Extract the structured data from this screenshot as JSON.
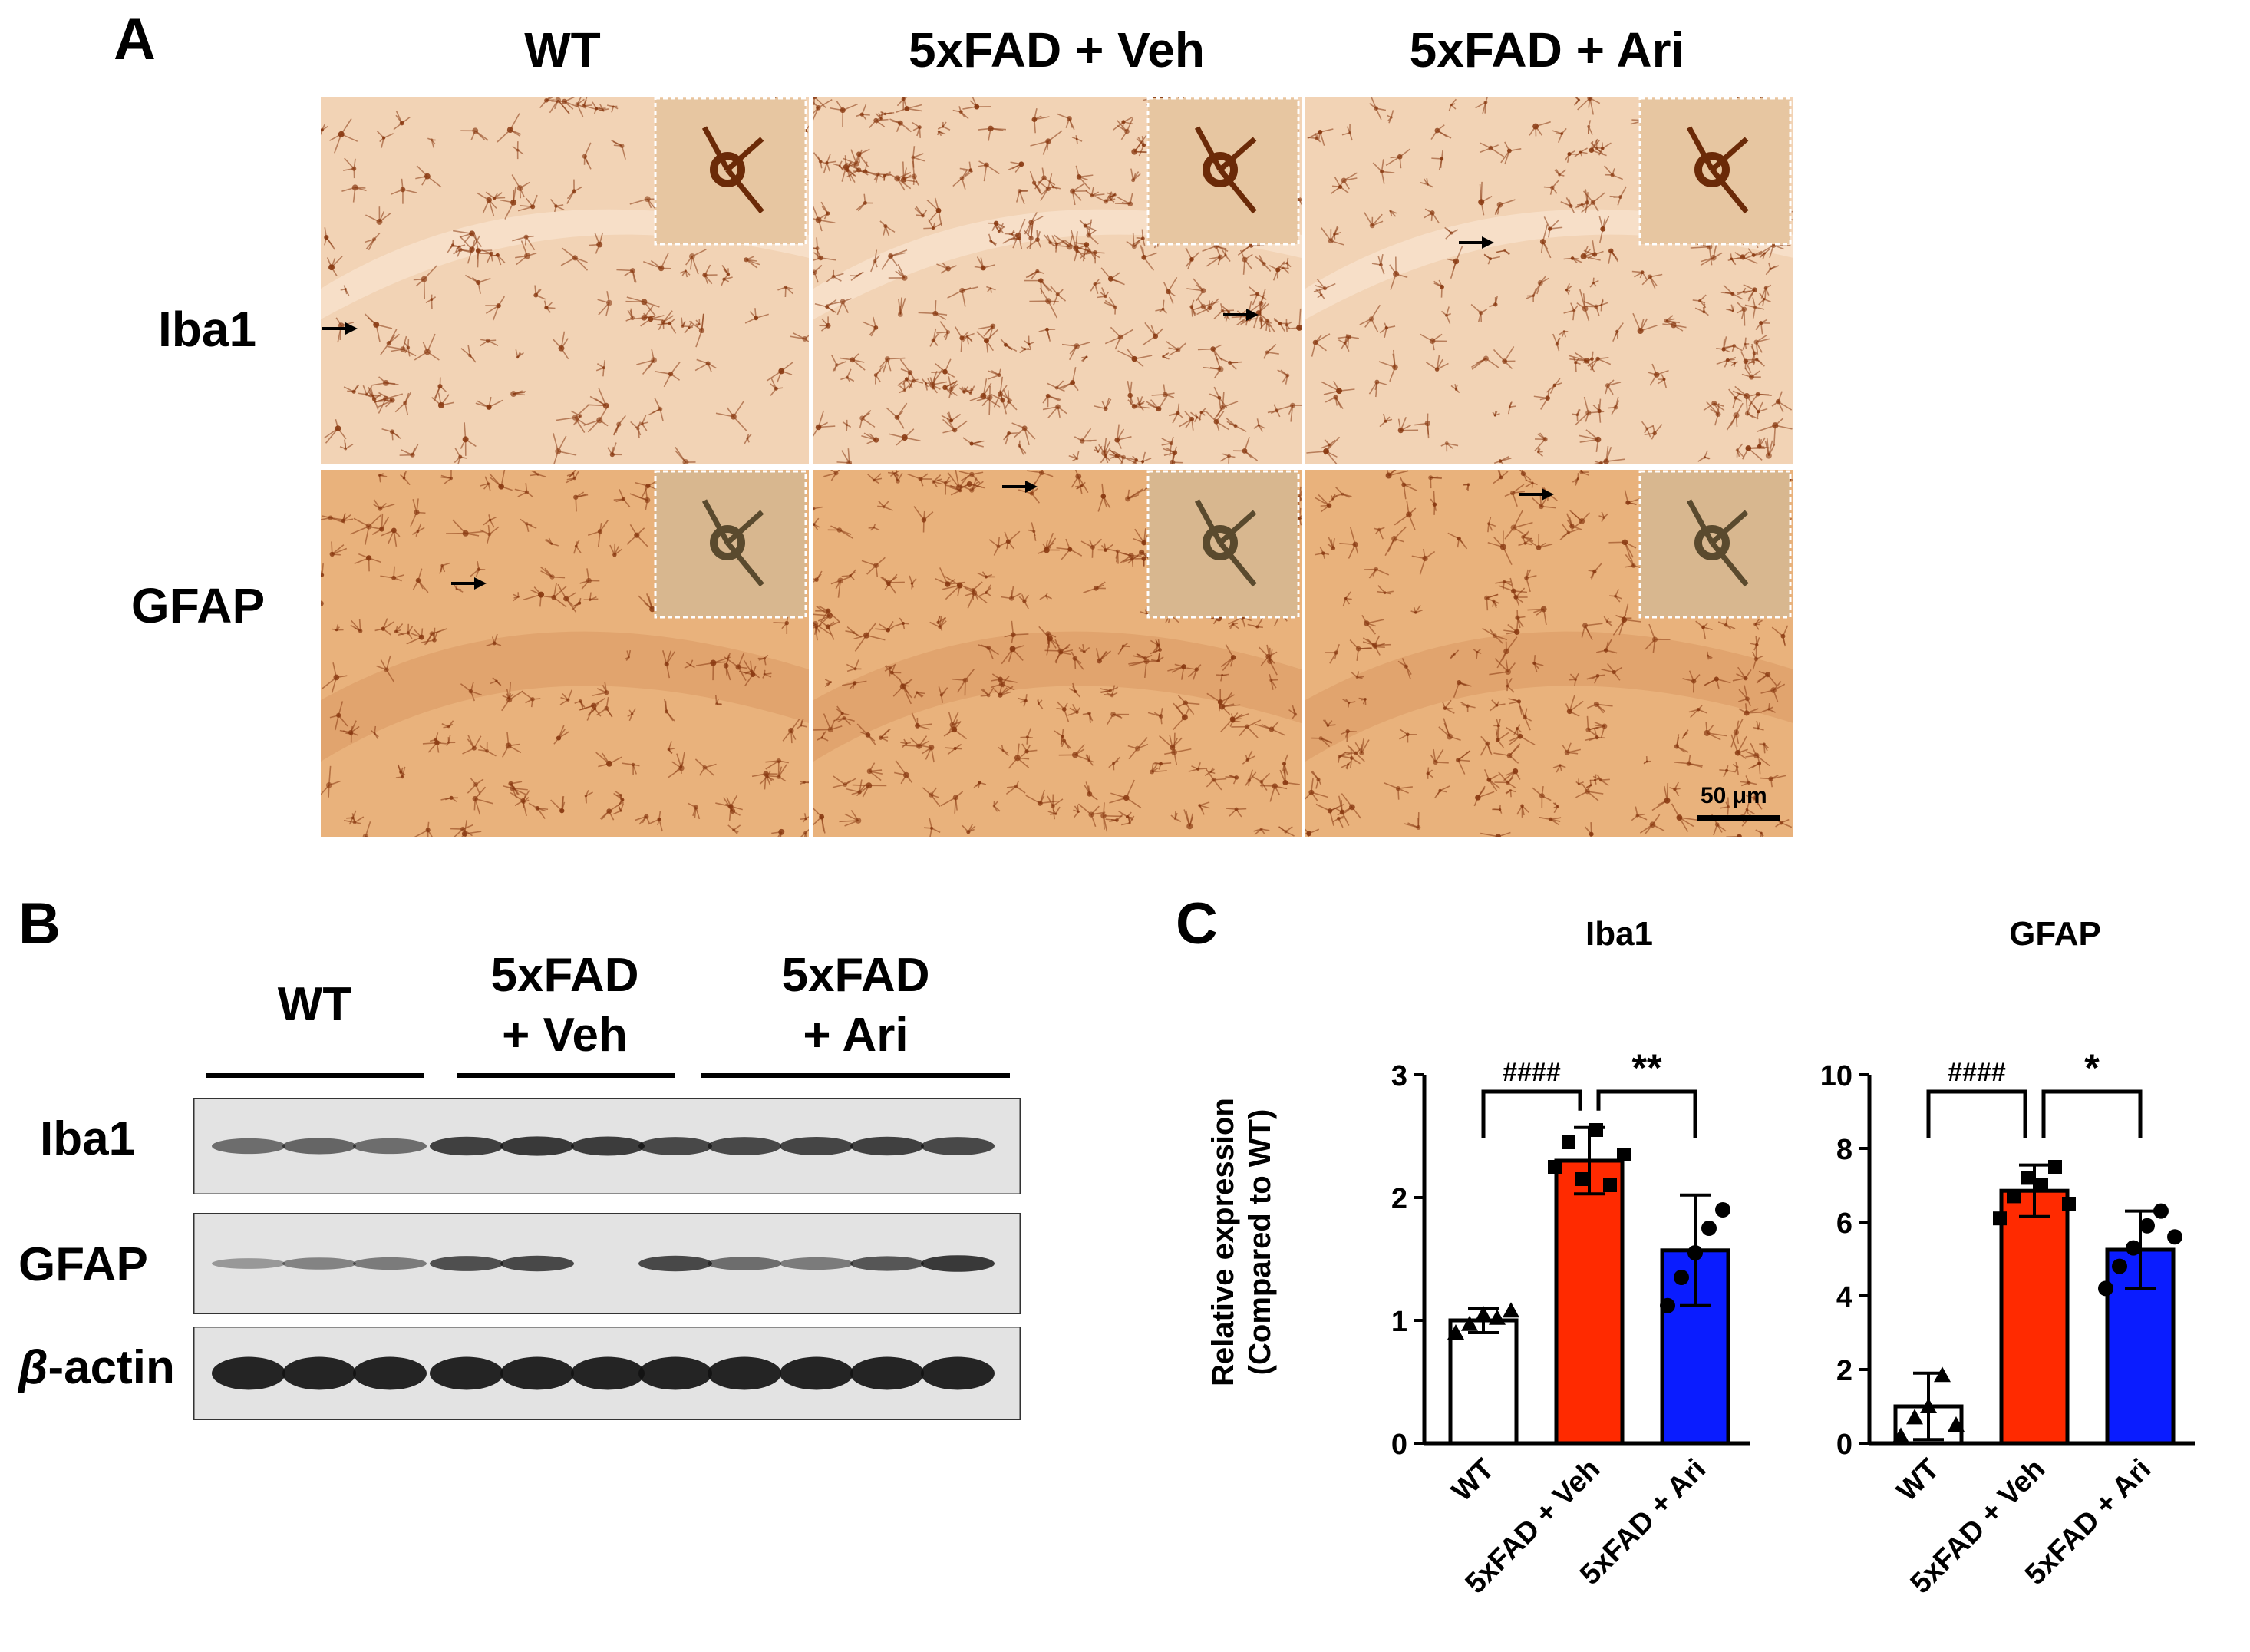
{
  "panels": {
    "a": {
      "letter": "A",
      "columns": [
        "WT",
        "5xFAD + Veh",
        "5xFAD + Ari"
      ],
      "rows": [
        "Iba1",
        "GFAP"
      ],
      "scale_bar": "50 μm"
    },
    "b": {
      "letter": "B",
      "groups": [
        {
          "line1": "WT",
          "line2": ""
        },
        {
          "line1": "5xFAD",
          "line2": "+ Veh"
        },
        {
          "line1": "5xFAD",
          "line2": "+ Ari"
        }
      ],
      "blots": [
        "Iba1",
        "GFAP",
        "-actin"
      ],
      "beta": "β"
    },
    "c": {
      "letter": "C",
      "ylabel_line1": "Relative expression",
      "ylabel_line2": "(Compared to WT)"
    }
  },
  "colors": {
    "iba1_tissue": "#f2d3b5",
    "gfap_tissue": "#e9b27c",
    "stain": "#8a3a12",
    "wt_bar": "#ffffff",
    "veh_bar": "#ff2a00",
    "ari_bar": "#0a1cff"
  },
  "chart_data": [
    {
      "type": "bar",
      "title": "Iba1",
      "categories": [
        "WT",
        "5xFAD + Veh",
        "5xFAD + Ari"
      ],
      "values": [
        1.0,
        2.3,
        1.57
      ],
      "errors": [
        0.1,
        0.27,
        0.45
      ],
      "points": [
        [
          0.9,
          0.97,
          1.05,
          1.02,
          1.08
        ],
        [
          2.25,
          2.45,
          2.15,
          2.55,
          2.1,
          2.35
        ],
        [
          1.12,
          1.35,
          1.55,
          1.75,
          1.9
        ]
      ],
      "markers": [
        "triangle",
        "square",
        "circle"
      ],
      "ylim": [
        0,
        3
      ],
      "yticks": [
        0,
        1,
        2,
        3
      ],
      "ylabel": "Relative expression (Compared to WT)",
      "annotations": [
        {
          "label": "####",
          "from": 0,
          "to": 1
        },
        {
          "label": "**",
          "from": 1,
          "to": 2
        }
      ]
    },
    {
      "type": "bar",
      "title": "GFAP",
      "categories": [
        "WT",
        "5xFAD + Veh",
        "5xFAD + Ari"
      ],
      "values": [
        1.0,
        6.85,
        5.25
      ],
      "errors": [
        0.9,
        0.7,
        1.05
      ],
      "points": [
        [
          0.2,
          0.7,
          1.0,
          1.85,
          0.5
        ],
        [
          6.1,
          6.7,
          7.2,
          7.0,
          7.5,
          6.5
        ],
        [
          4.2,
          4.8,
          5.3,
          5.9,
          6.3,
          5.6
        ]
      ],
      "markers": [
        "triangle",
        "square",
        "circle"
      ],
      "ylim": [
        0,
        10
      ],
      "yticks": [
        0,
        2,
        4,
        6,
        8,
        10
      ],
      "annotations": [
        {
          "label": "####",
          "from": 0,
          "to": 1
        },
        {
          "label": "*",
          "from": 1,
          "to": 2
        }
      ]
    }
  ]
}
